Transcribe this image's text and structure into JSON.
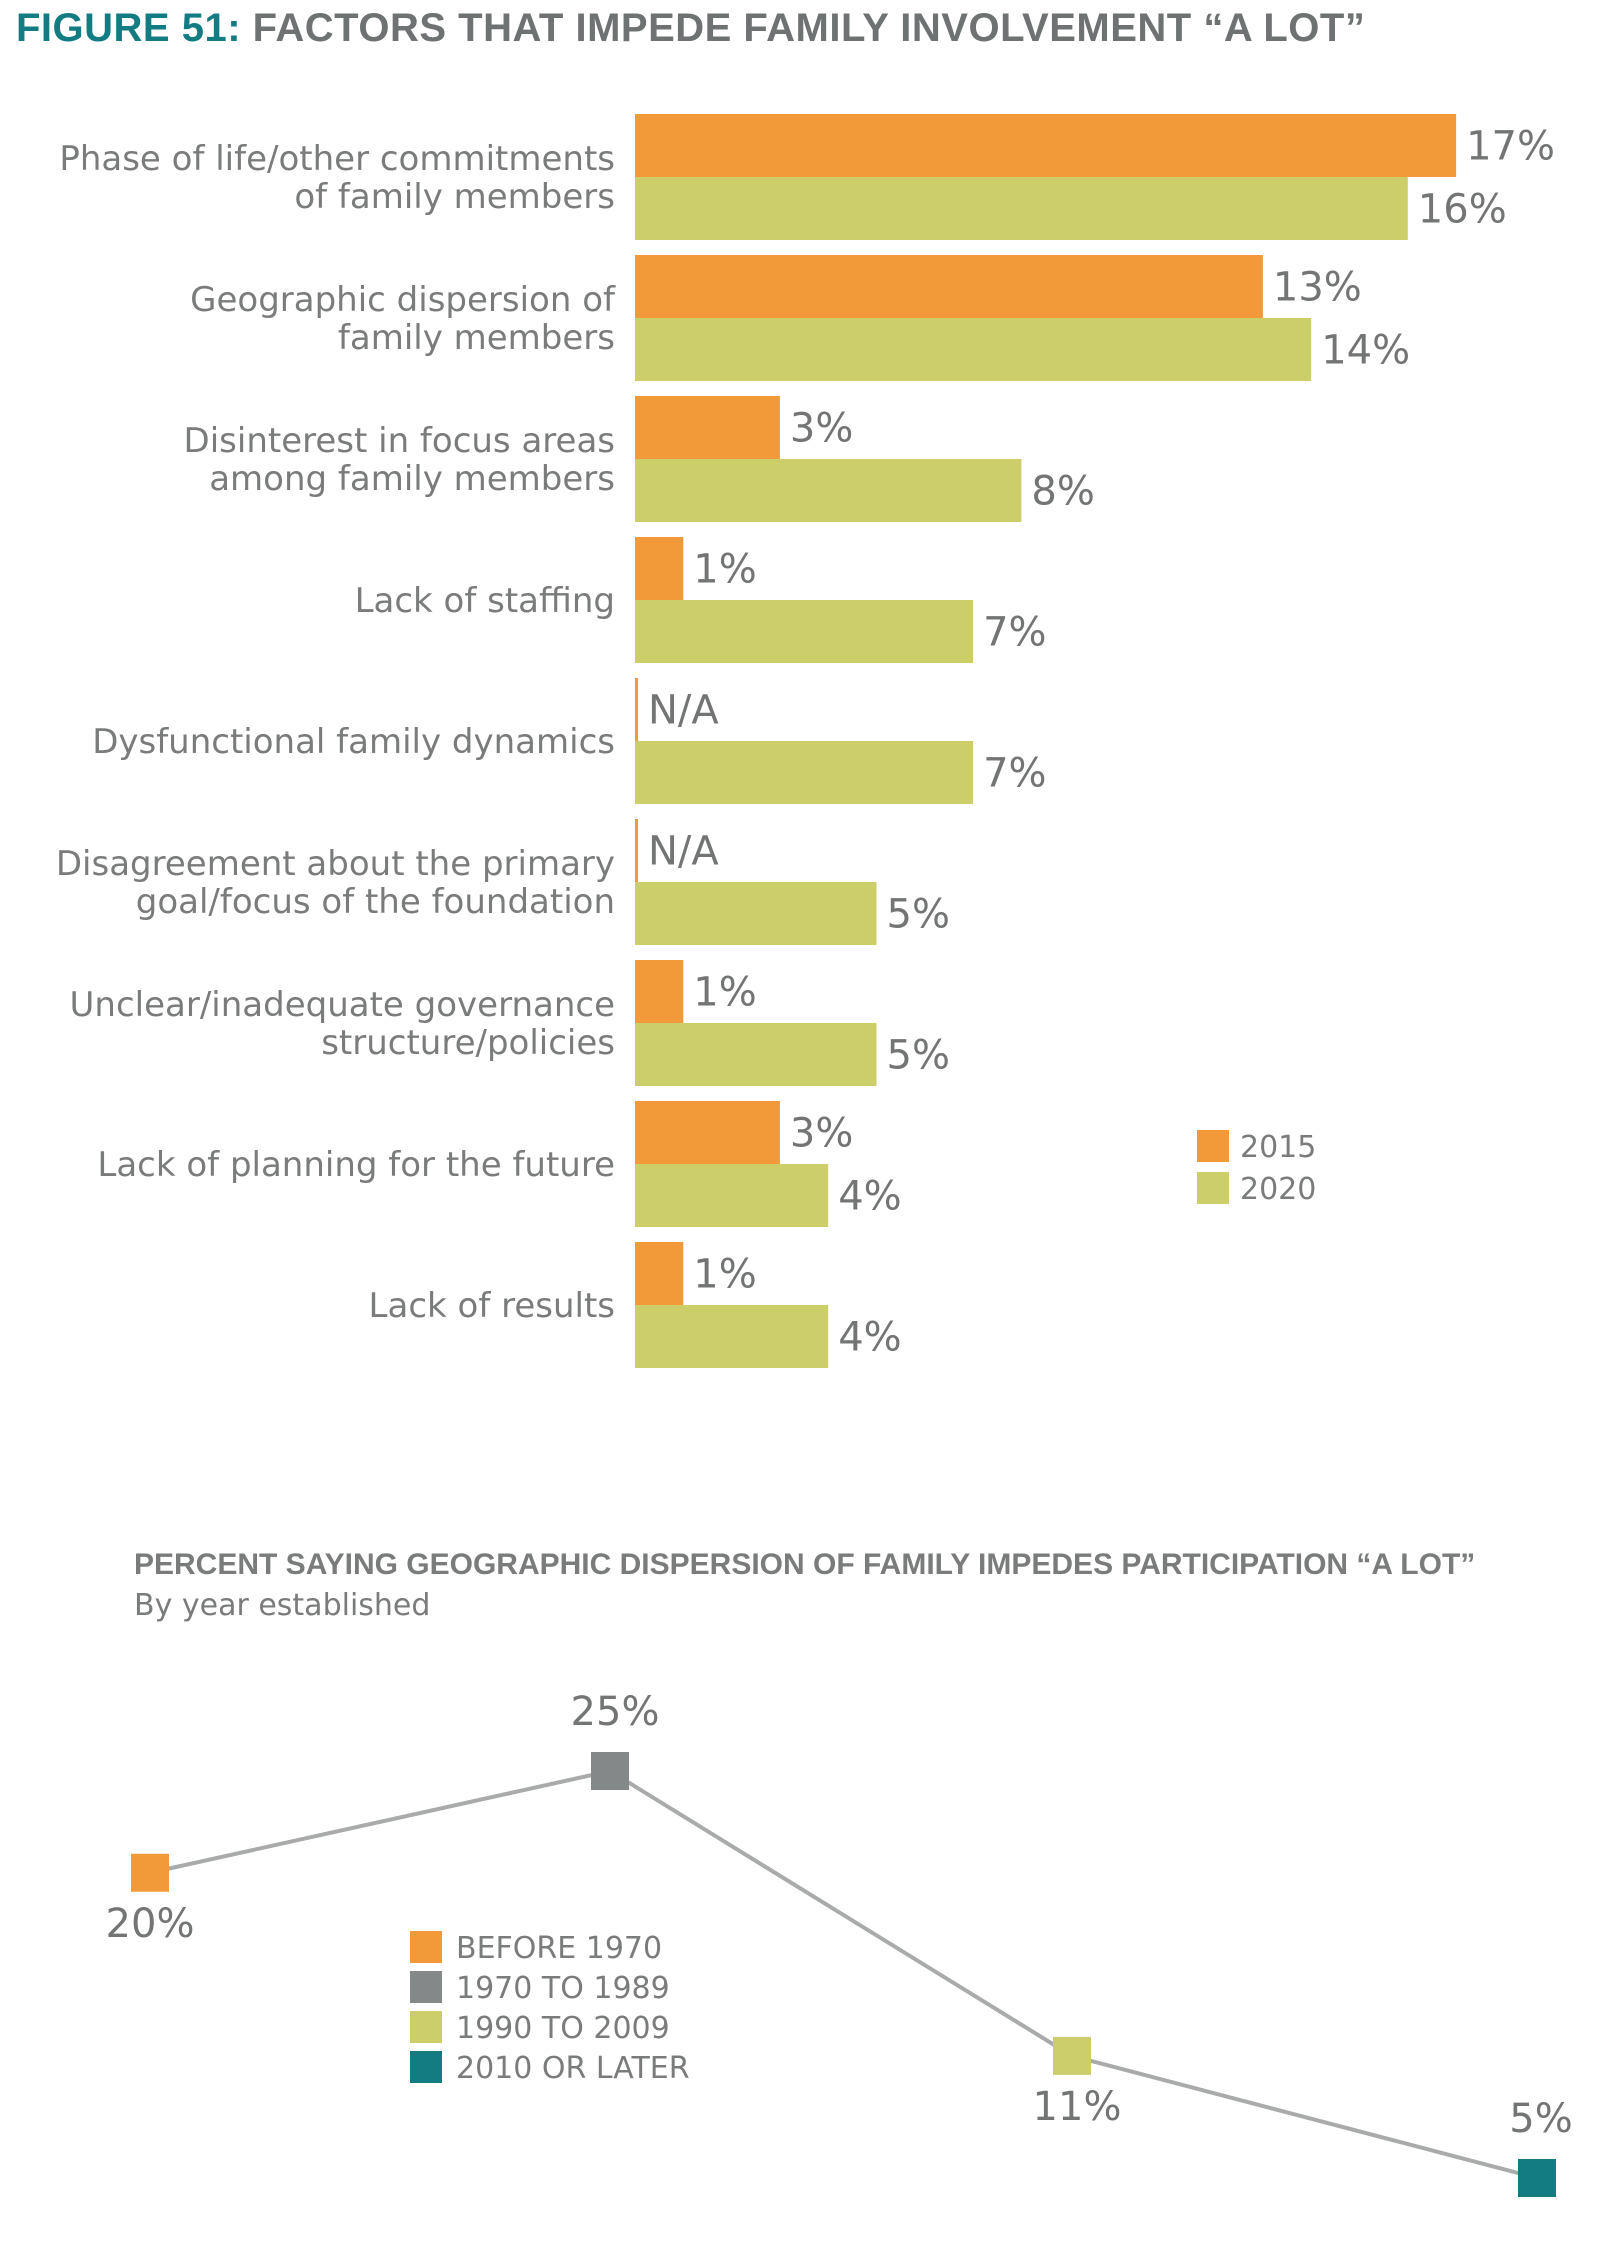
{
  "figure": {
    "title_lead": "FIGURE 51:",
    "title_rest": " FACTORS THAT IMPEDE FAMILY INVOLVEMENT “A LOT”"
  },
  "chart_data": [
    {
      "type": "bar",
      "orientation": "horizontal",
      "categories": [
        [
          "Phase of life/other commitments",
          "of family members"
        ],
        [
          "Geographic dispersion of",
          "family members"
        ],
        [
          "Disinterest in focus areas",
          "among family members"
        ],
        [
          "Lack of staffing"
        ],
        [
          "Dysfunctional family dynamics"
        ],
        [
          "Disagreement about the primary",
          "goal/focus of the foundation"
        ],
        [
          "Unclear/inadequate governance",
          "structure/policies"
        ],
        [
          "Lack of planning for the future"
        ],
        [
          "Lack of results"
        ]
      ],
      "series": [
        {
          "name": "2015",
          "color": "#f2993a",
          "values": [
            17,
            13,
            3,
            1,
            null,
            null,
            1,
            3,
            1
          ],
          "labels": [
            "17%",
            "13%",
            "3%",
            "1%",
            "N/A",
            "N/A",
            "1%",
            "3%",
            "1%"
          ]
        },
        {
          "name": "2020",
          "color": "#ccce6a",
          "values": [
            16,
            14,
            8,
            7,
            7,
            5,
            5,
            4,
            4
          ],
          "labels": [
            "16%",
            "14%",
            "8%",
            "7%",
            "7%",
            "5%",
            "5%",
            "4%",
            "4%"
          ]
        }
      ],
      "legend": "right"
    },
    {
      "type": "line",
      "title": "PERCENT SAYING GEOGRAPHIC  DISPERSION OF FAMILY IMPEDES PARTICIPATION “A LOT”",
      "subtitle": "By year established",
      "line_color": "#a9abab",
      "points": [
        {
          "category": "BEFORE 1970",
          "value": 20,
          "label": "20%",
          "color": "#f2993a"
        },
        {
          "category": "1970 TO 1989",
          "value": 25,
          "label": "25%",
          "color": "#858889"
        },
        {
          "category": "1990 TO 2009",
          "value": 11,
          "label": "11%",
          "color": "#ccce6a"
        },
        {
          "category": "2010 OR LATER",
          "value": 5,
          "label": "5%",
          "color": "#137b82"
        }
      ],
      "legend": "center-left"
    }
  ]
}
